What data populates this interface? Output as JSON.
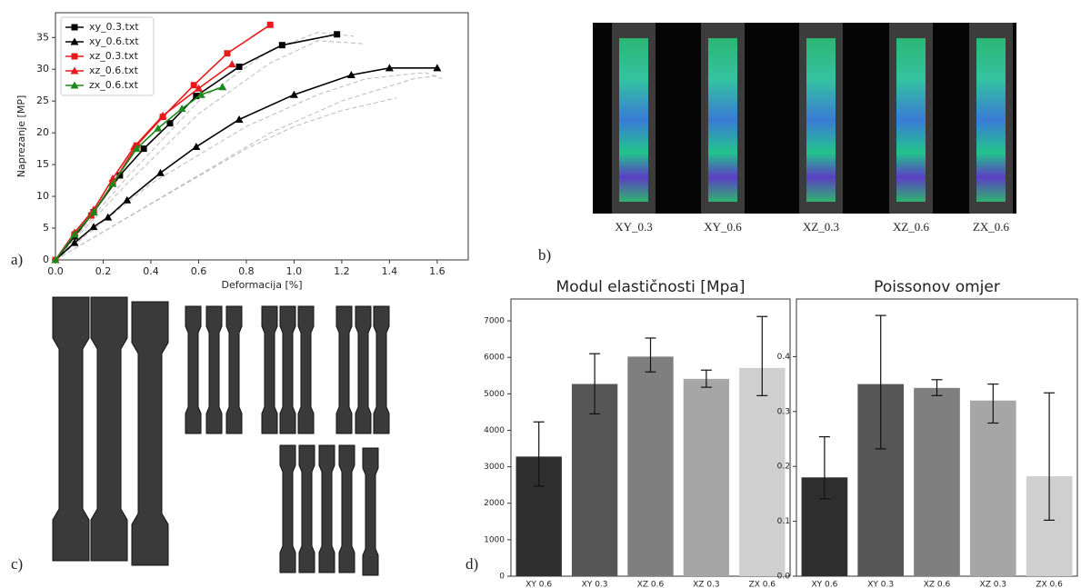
{
  "panel_labels": [
    "a)",
    "b)",
    "c)",
    "d)"
  ],
  "panel_b": {
    "captions": [
      "XY_0.3",
      "XY_0.6",
      "XZ_0.3",
      "XZ_0.6",
      "ZX_0.6"
    ]
  },
  "chart_data": [
    {
      "type": "line",
      "xlabel": "Deformacija [%]",
      "ylabel": "Naprezanje [MP]",
      "xlim": [
        0,
        1.73
      ],
      "ylim": [
        0,
        38.9
      ],
      "grid": false,
      "legend": "upper left",
      "xticks": [
        {
          "value": 0,
          "label": "0.0"
        },
        0.2,
        0.4,
        0.6,
        0.8,
        {
          "value": 1,
          "label": "1.0"
        },
        1.2,
        1.4,
        1.6
      ],
      "yticks": [
        0,
        5,
        10,
        15,
        20,
        25,
        30,
        35
      ],
      "series": [
        {
          "color": "#bbbbbb",
          "dashed": true,
          "x": [
            0,
            0.3,
            0.6,
            0.9,
            1.1,
            1.25
          ],
          "values": [
            0,
            13,
            25,
            33,
            35.8,
            35.2
          ]
        },
        {
          "color": "#bbbbbb",
          "dashed": true,
          "x": [
            0,
            0.3,
            0.6,
            0.9,
            1.1,
            1.3
          ],
          "values": [
            0,
            12,
            23,
            31,
            34.5,
            34
          ]
        },
        {
          "color": "#bbbbbb",
          "dashed": true,
          "x": [
            0,
            0.4,
            0.8,
            1.1,
            1.3,
            1.55,
            1.62
          ],
          "values": [
            0,
            12,
            21,
            26,
            28.5,
            29.5,
            28.5
          ]
        },
        {
          "color": "#bbbbbb",
          "dashed": true,
          "x": [
            0,
            0.5,
            0.8,
            1.0,
            1.2,
            1.43
          ],
          "values": [
            0,
            11,
            17.5,
            21,
            23.5,
            25.5
          ]
        },
        {
          "color": "#bbbbbb",
          "dashed": true,
          "x": [
            0,
            0.45,
            0.9,
            1.2,
            1.5,
            1.6
          ],
          "values": [
            0,
            10,
            20,
            25,
            28.5,
            29
          ]
        },
        {
          "name": "xy_0.3.txt",
          "color": "#000000",
          "marker": "square",
          "x": [
            0,
            0.08,
            0.16,
            0.27,
            0.37,
            0.48,
            0.59,
            0.77,
            0.95,
            1.18
          ],
          "values": [
            0,
            3.7,
            7.5,
            13.3,
            17.5,
            21.5,
            25.8,
            30.4,
            33.8,
            35.5
          ]
        },
        {
          "name": "xy_0.6.txt",
          "color": "#000000",
          "marker": "triangle",
          "x": [
            0,
            0.08,
            0.16,
            0.22,
            0.3,
            0.44,
            0.59,
            0.77,
            1.0,
            1.24,
            1.4,
            1.6
          ],
          "values": [
            0,
            2.7,
            5.2,
            6.7,
            9.4,
            13.7,
            17.8,
            22.1,
            26,
            29.1,
            30.2,
            30.2
          ]
        },
        {
          "name": "xz_0.3.txt",
          "color": "#e8191b",
          "marker": "square",
          "x": [
            0,
            0.08,
            0.15,
            0.24,
            0.34,
            0.45,
            0.58,
            0.72,
            0.9
          ],
          "values": [
            0,
            4,
            7,
            12,
            18,
            22.5,
            27.5,
            32.5,
            37
          ]
        },
        {
          "name": "xz_0.6.txt",
          "color": "#e8191b",
          "marker": "triangle",
          "x": [
            0,
            0.08,
            0.16,
            0.24,
            0.33,
            0.45,
            0.6,
            0.74
          ],
          "values": [
            0,
            4.3,
            7.9,
            12.8,
            17.8,
            22.7,
            27,
            30.8
          ]
        },
        {
          "name": "zx_0.6.txt",
          "color": "#1a8a1a",
          "marker": "triangle",
          "x": [
            0,
            0.08,
            0.16,
            0.24,
            0.34,
            0.43,
            0.53,
            0.61,
            0.7
          ],
          "values": [
            0,
            4,
            7.5,
            12,
            17.5,
            20.7,
            23.8,
            26,
            27.2
          ]
        }
      ]
    },
    {
      "type": "bar",
      "title": "Modul elastičnosti [Mpa]",
      "categories": [
        "XY 0.6",
        "XY 0.3",
        "XZ 0.6",
        "XZ 0.3",
        "ZX 0.6"
      ],
      "values": [
        3280,
        5270,
        6020,
        5410,
        5710
      ],
      "err_minus": [
        810,
        820,
        420,
        230,
        760
      ],
      "err_plus": [
        950,
        830,
        510,
        240,
        1410
      ],
      "colors": [
        "#2e2e2e",
        "#565656",
        "#7f7f7f",
        "#a6a6a6",
        "#cfcfcf"
      ],
      "ylim": [
        0,
        7600
      ],
      "yticks": [
        0,
        1000,
        2000,
        3000,
        4000,
        5000,
        6000,
        7000
      ]
    },
    {
      "type": "bar",
      "title": "Poissonov omjer",
      "categories": [
        "XY 0.6",
        "XY 0.3",
        "XZ 0.6",
        "XZ 0.3",
        "ZX 0.6"
      ],
      "values": [
        0.18,
        0.35,
        0.343,
        0.32,
        0.182
      ],
      "err_minus": [
        0.039,
        0.118,
        0.014,
        0.041,
        0.08
      ],
      "err_plus": [
        0.074,
        0.125,
        0.015,
        0.03,
        0.152
      ],
      "colors": [
        "#2e2e2e",
        "#565656",
        "#7f7f7f",
        "#a6a6a6",
        "#cfcfcf"
      ],
      "ylim": [
        0,
        0.505
      ],
      "yticks": [
        {
          "value": 0,
          "label": "0.0"
        },
        0.1,
        0.2,
        0.3,
        0.4
      ]
    }
  ]
}
